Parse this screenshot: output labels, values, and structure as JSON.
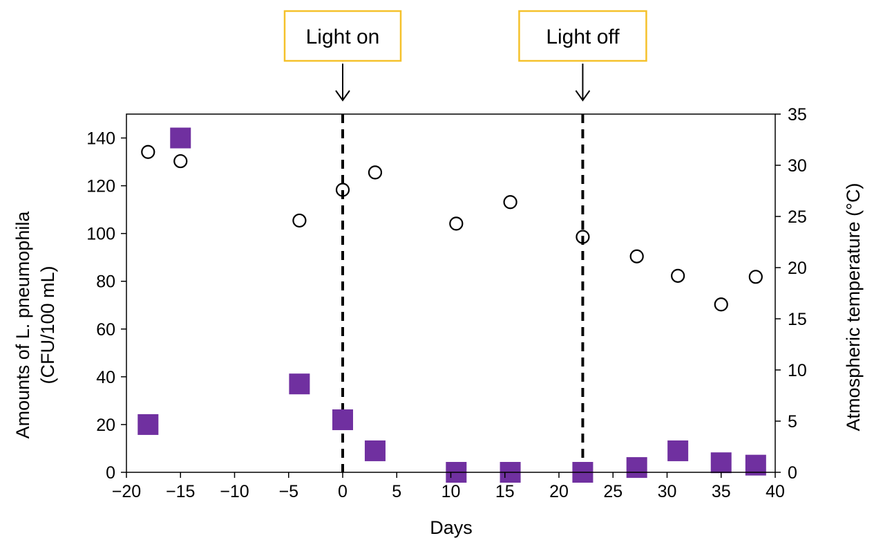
{
  "chart_data": {
    "type": "scatter",
    "xlabel": "Days",
    "ylabel": "Amounts of L. pneumophila",
    "ylabel_line2": "(CFU/100 mL)",
    "y2label": "Atmospheric temperature (°C)",
    "xlim": [
      -20,
      40
    ],
    "ylim": [
      0,
      150
    ],
    "y2lim": [
      0,
      35
    ],
    "x_ticks": [
      -20,
      -15,
      -10,
      -5,
      0,
      5,
      10,
      15,
      20,
      25,
      30,
      35,
      40
    ],
    "x_tick_labels": [
      "−20",
      "−15",
      "−10",
      "−5",
      "0",
      "5",
      "10",
      "15",
      "20",
      "25",
      "30",
      "35",
      "40"
    ],
    "y_ticks": [
      0,
      20,
      40,
      60,
      80,
      100,
      120,
      140
    ],
    "y_tick_labels": [
      "0",
      "20",
      "40",
      "60",
      "80",
      "100",
      "120",
      "140"
    ],
    "y2_ticks": [
      0,
      5,
      10,
      15,
      20,
      25,
      30,
      35
    ],
    "y2_tick_labels": [
      "0",
      "5",
      "10",
      "15",
      "20",
      "25",
      "30",
      "35"
    ],
    "grid": false,
    "legend": "none",
    "series": [
      {
        "axis": "left",
        "marker": "filled-square",
        "color": "#7030a0",
        "x": [
          -18,
          -15,
          -4,
          0,
          3,
          10.5,
          15.5,
          22.2,
          27.2,
          31,
          35,
          38.2
        ],
        "y": [
          20,
          140,
          37,
          22,
          9,
          0,
          0,
          0,
          2,
          9,
          4,
          3
        ]
      },
      {
        "axis": "right",
        "marker": "open-circle",
        "color": "#000000",
        "x": [
          -18,
          -15,
          -4,
          0,
          3,
          10.5,
          15.5,
          22.2,
          27.2,
          31,
          35,
          38.2
        ],
        "y": [
          31.3,
          30.4,
          24.6,
          27.6,
          29.3,
          24.3,
          26.4,
          23.0,
          21.1,
          19.2,
          16.4,
          19.1
        ]
      }
    ],
    "annotations": [
      {
        "label": "Light on",
        "x": 0
      },
      {
        "label": "Light off",
        "x": 22.2
      }
    ],
    "colors": {
      "annotation_border": "#f5c12b",
      "vline": "#000000",
      "axis": "#000000"
    }
  }
}
